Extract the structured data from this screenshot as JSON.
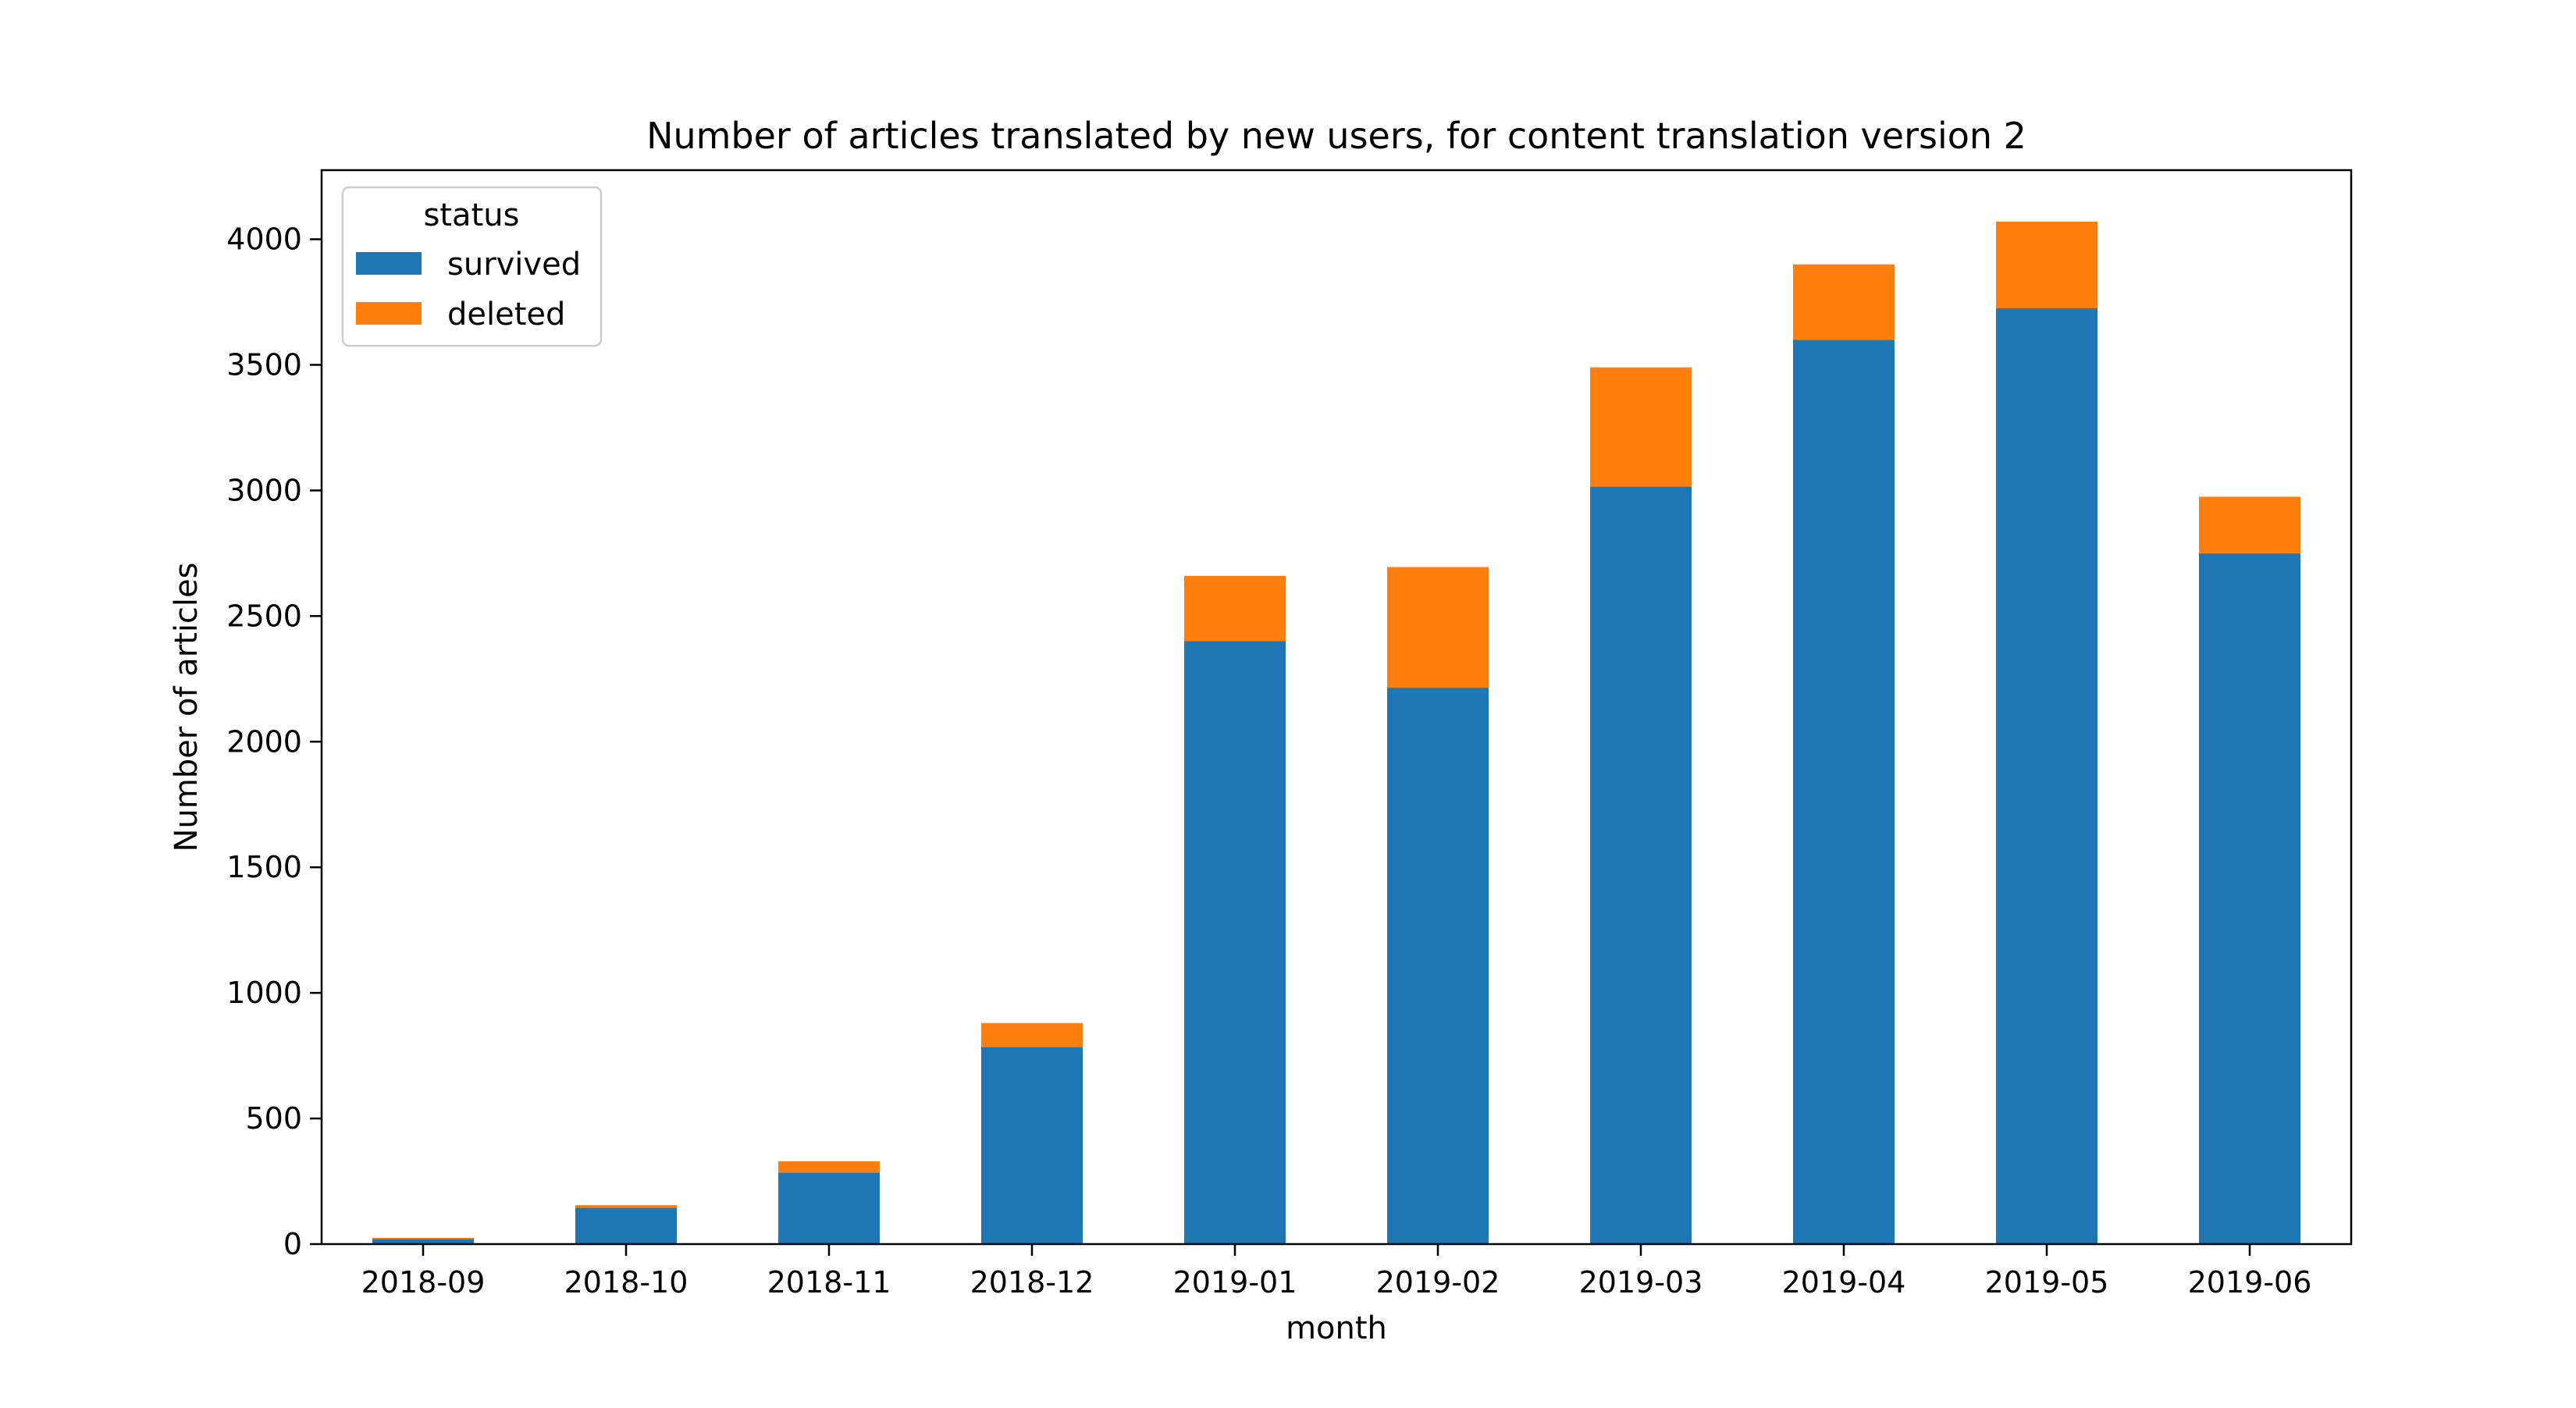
{
  "chart_data": {
    "type": "bar",
    "stacked": true,
    "title": "Number of articles translated by new users, for content translation version 2",
    "xlabel": "month",
    "ylabel": "Number of articles",
    "categories": [
      "2018-09",
      "2018-10",
      "2018-11",
      "2018-12",
      "2019-01",
      "2019-02",
      "2019-03",
      "2019-04",
      "2019-05",
      "2019-06"
    ],
    "series": [
      {
        "name": "survived",
        "color": "#1f77b4",
        "values": [
          20,
          145,
          285,
          785,
          2400,
          2215,
          3015,
          3600,
          3725,
          2750
        ]
      },
      {
        "name": "deleted",
        "color": "#ff7f0e",
        "values": [
          5,
          10,
          45,
          95,
          260,
          480,
          475,
          300,
          345,
          225
        ]
      }
    ],
    "ylim": [
      0,
      4275
    ],
    "yticks": [
      0,
      500,
      1000,
      1500,
      2000,
      2500,
      3000,
      3500,
      4000
    ],
    "legend": {
      "title": "status",
      "placement": "top-left"
    },
    "grid": false
  }
}
